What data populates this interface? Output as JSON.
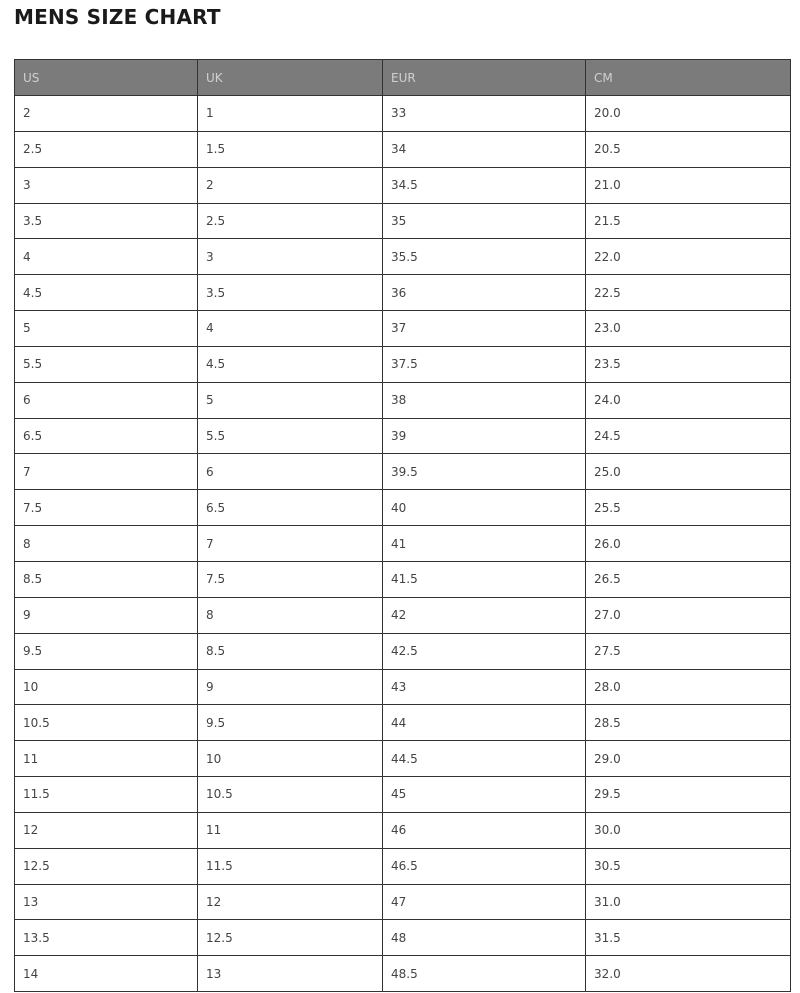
{
  "title": "MENS SIZE CHART",
  "table": {
    "headers": [
      "US",
      "UK",
      "EUR",
      "CM"
    ],
    "rows": [
      [
        "2",
        "1",
        "33",
        "20.0"
      ],
      [
        "2.5",
        "1.5",
        "34",
        "20.5"
      ],
      [
        "3",
        "2",
        "34.5",
        "21.0"
      ],
      [
        "3.5",
        "2.5",
        "35",
        "21.5"
      ],
      [
        "4",
        "3",
        "35.5",
        "22.0"
      ],
      [
        "4.5",
        "3.5",
        "36",
        "22.5"
      ],
      [
        "5",
        "4",
        "37",
        "23.0"
      ],
      [
        "5.5",
        "4.5",
        "37.5",
        "23.5"
      ],
      [
        "6",
        "5",
        "38",
        "24.0"
      ],
      [
        "6.5",
        "5.5",
        "39",
        "24.5"
      ],
      [
        "7",
        "6",
        "39.5",
        "25.0"
      ],
      [
        "7.5",
        "6.5",
        "40",
        "25.5"
      ],
      [
        "8",
        "7",
        "41",
        "26.0"
      ],
      [
        "8.5",
        "7.5",
        "41.5",
        "26.5"
      ],
      [
        "9",
        "8",
        "42",
        "27.0"
      ],
      [
        "9.5",
        "8.5",
        "42.5",
        "27.5"
      ],
      [
        "10",
        "9",
        "43",
        "28.0"
      ],
      [
        "10.5",
        "9.5",
        "44",
        "28.5"
      ],
      [
        "11",
        "10",
        "44.5",
        "29.0"
      ],
      [
        "11.5",
        "10.5",
        "45",
        "29.5"
      ],
      [
        "12",
        "11",
        "46",
        "30.0"
      ],
      [
        "12.5",
        "11.5",
        "46.5",
        "30.5"
      ],
      [
        "13",
        "12",
        "47",
        "31.0"
      ],
      [
        "13.5",
        "12.5",
        "48",
        "31.5"
      ],
      [
        "14",
        "13",
        "48.5",
        "32.0"
      ]
    ]
  }
}
